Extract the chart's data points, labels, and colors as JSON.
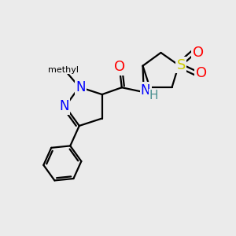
{
  "background_color": "#ebebeb",
  "bond_color": "#000000",
  "bond_width": 1.6,
  "atom_colors": {
    "N": "#0000ff",
    "O": "#ff0000",
    "S": "#cccc00",
    "H": "#4a9090",
    "C": "#000000"
  },
  "font_size": 12,
  "figsize": [
    3.0,
    3.0
  ],
  "dpi": 100
}
